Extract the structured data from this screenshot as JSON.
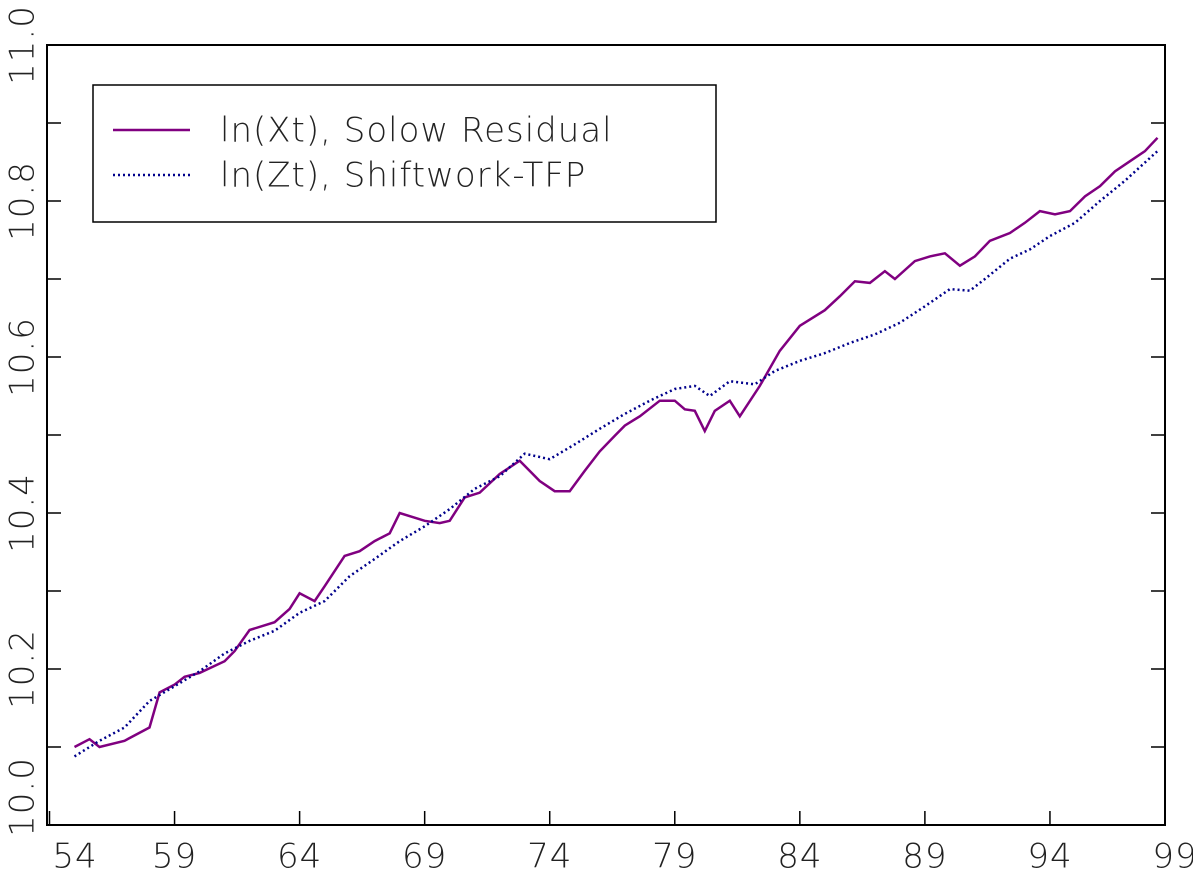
{
  "chart_data": {
    "type": "line",
    "xlim": [
      53.9,
      98.6
    ],
    "xticks": [
      54,
      59,
      64,
      69,
      74,
      79,
      84,
      89,
      94,
      99
    ],
    "ylim": [
      10.0,
      11.0
    ],
    "yticks": [
      {
        "value": 10.0,
        "label": "10.0"
      },
      {
        "value": 10.2,
        "label": "10.2"
      },
      {
        "value": 10.4,
        "label": "10.4"
      },
      {
        "value": 10.6,
        "label": "10.6"
      },
      {
        "value": 10.8,
        "label": "10.8"
      },
      {
        "value": 11.0,
        "label": "11.0"
      }
    ],
    "yminor_ticks": [
      10.1,
      10.3,
      10.5,
      10.7,
      10.9
    ],
    "series": [
      {
        "name": "ln(Xt), Solow Residual",
        "color": "#800080",
        "style": "solid",
        "x": [
          55.0,
          55.6,
          56,
          57,
          58,
          58.4,
          59,
          59.4,
          60,
          61,
          61.4,
          62,
          63,
          63.6,
          64,
          64.6,
          65,
          65.8,
          66.4,
          67,
          67.6,
          68,
          68.6,
          69,
          69.6,
          70,
          70.6,
          71.2,
          72,
          72.8,
          73.2,
          73.6,
          74.2,
          74.8,
          75.4,
          76,
          76.6,
          77,
          77.6,
          78.4,
          79,
          79.4,
          79.8,
          80.2,
          80.6,
          81.2,
          81.6,
          82.4,
          83.2,
          84,
          85,
          85.6,
          86.2,
          86.8,
          87.4,
          87.8,
          88.6,
          89.2,
          89.8,
          90.4,
          91,
          91.6,
          92.4,
          93,
          93.6,
          94.2,
          94.8,
          95.4,
          96,
          96.6,
          97.2,
          97.8,
          98.3
        ],
        "values": [
          10.1,
          10.11,
          10.1,
          10.108,
          10.125,
          10.17,
          10.18,
          10.19,
          10.195,
          10.21,
          10.223,
          10.25,
          10.26,
          10.277,
          10.297,
          10.287,
          10.306,
          10.345,
          10.351,
          10.364,
          10.374,
          10.4,
          10.394,
          10.39,
          10.387,
          10.39,
          10.42,
          10.426,
          10.45,
          10.467,
          10.454,
          10.441,
          10.428,
          10.428,
          10.454,
          10.479,
          10.499,
          10.512,
          10.524,
          10.544,
          10.544,
          10.533,
          10.531,
          10.505,
          10.531,
          10.544,
          10.524,
          10.563,
          10.608,
          10.64,
          10.66,
          10.678,
          10.697,
          10.695,
          10.71,
          10.7,
          10.723,
          10.729,
          10.733,
          10.717,
          10.729,
          10.749,
          10.759,
          10.772,
          10.787,
          10.783,
          10.787,
          10.806,
          10.819,
          10.838,
          10.851,
          10.864,
          10.881
        ]
      },
      {
        "name": "ln(Zt), Shiftwork-TFP",
        "color": "#00008b",
        "style": "dotted",
        "x": [
          55,
          56,
          57,
          58,
          59,
          60,
          61,
          62,
          63,
          64,
          65,
          66,
          67,
          68,
          69,
          70,
          71,
          72,
          73,
          74,
          75,
          76,
          77,
          78,
          79,
          79.8,
          80.4,
          81.2,
          82.2,
          83,
          84,
          85,
          86,
          87,
          88,
          89,
          90,
          90.8,
          91.4,
          92.4,
          93.2,
          94,
          95,
          96,
          97,
          98.3
        ],
        "values": [
          10.088,
          10.108,
          10.125,
          10.159,
          10.178,
          10.197,
          10.22,
          10.236,
          10.249,
          10.272,
          10.287,
          10.319,
          10.341,
          10.364,
          10.383,
          10.405,
          10.431,
          10.447,
          10.476,
          10.469,
          10.488,
          10.508,
          10.527,
          10.544,
          10.559,
          10.563,
          10.55,
          10.569,
          10.565,
          10.582,
          10.595,
          10.605,
          10.618,
          10.629,
          10.644,
          10.665,
          10.687,
          10.685,
          10.7,
          10.726,
          10.738,
          10.755,
          10.772,
          10.8,
          10.826,
          10.864
        ]
      }
    ],
    "legend": "upper left"
  }
}
